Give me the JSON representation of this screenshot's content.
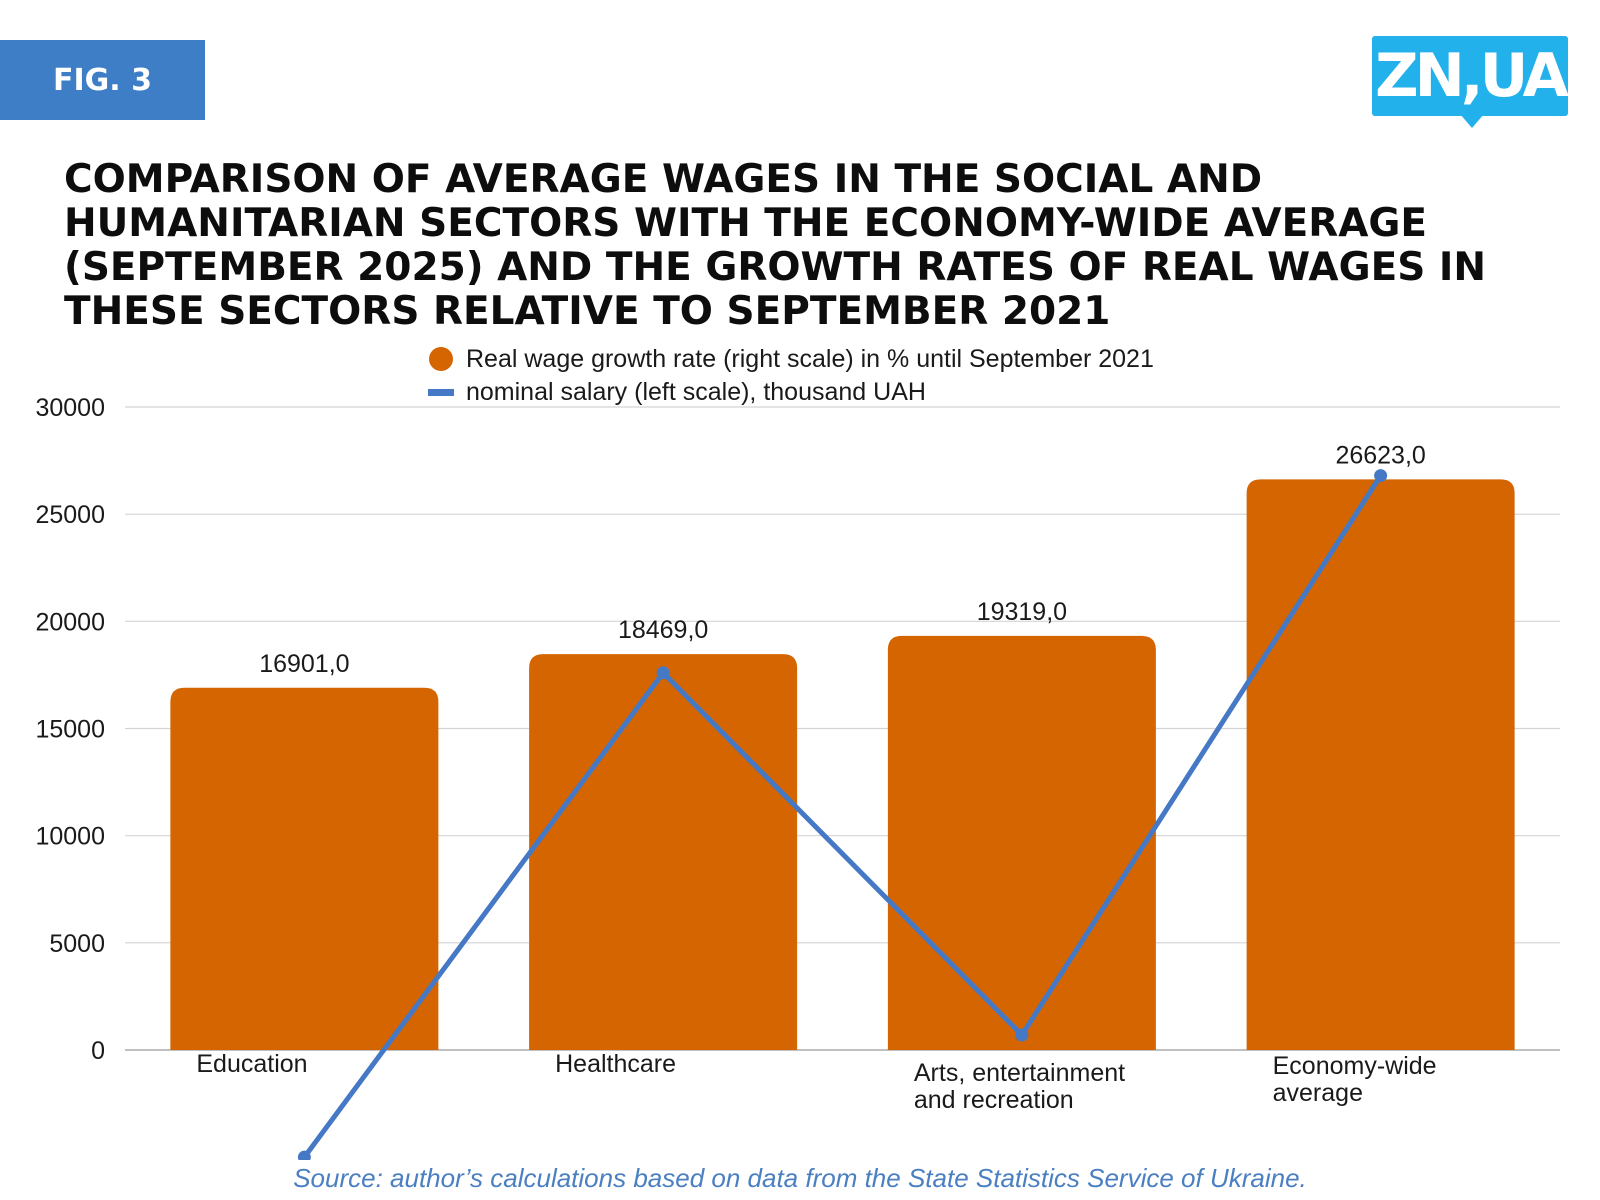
{
  "figure_label": "FIG. 3",
  "logo_text": "ZN,UA",
  "source_note": "Source: author’s calculations based on data from the State Statistics Service of Ukraine.",
  "colors": {
    "bar": "#d46500",
    "line": "#4579c6",
    "badge": "#3d7ec6",
    "logo": "#23b1ec",
    "grid": "#d4d4d4"
  },
  "chart_data": {
    "type": "bar",
    "title": "COMPARISON OF AVERAGE WAGES IN THE SOCIAL AND HUMANITARIAN SECTORS WITH THE ECONOMY-WIDE AVERAGE (SEPTEMBER 2025) AND THE GROWTH RATES OF REAL WAGES IN THESE SECTORS RELATIVE TO SEPTEMBER 2021",
    "categories": [
      "Education",
      "Healthcare",
      "Arts, entertainment and recreation",
      "Economy-wide average"
    ],
    "series": [
      {
        "name": "Real wage growth rate (right scale) in % until September 2021",
        "type": "bar",
        "values": [
          16901,
          18469,
          19319,
          26623
        ],
        "labels": [
          "16901,0",
          "18469,0",
          "19319,0",
          "26623,0"
        ]
      },
      {
        "name": "nominal salary (left scale), thousand UAH",
        "type": "line",
        "values": [
          -5000,
          17600,
          700,
          26800
        ]
      }
    ],
    "ylim": [
      0,
      30000
    ],
    "yticks": [
      0,
      5000,
      10000,
      15000,
      20000,
      25000,
      30000
    ],
    "ytick_labels": [
      "0",
      "5000",
      "10000",
      "15000",
      "20000",
      "25000",
      "30000"
    ],
    "grid": true,
    "legend_position": "top"
  }
}
